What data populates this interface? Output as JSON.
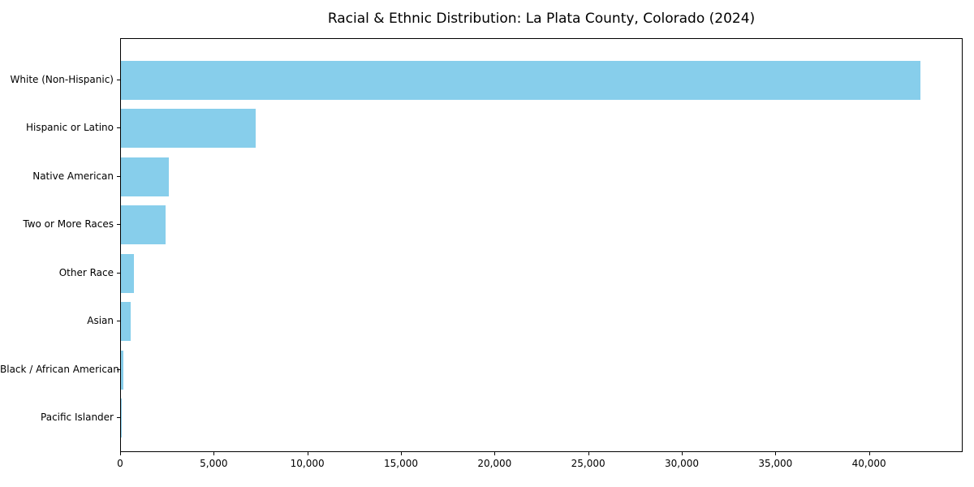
{
  "chart_data": {
    "type": "bar",
    "orientation": "horizontal",
    "title": "Racial & Ethnic Distribution: La Plata County, Colorado (2024)",
    "categories": [
      "White (Non-Hispanic)",
      "Hispanic or Latino",
      "Native American",
      "Two or More Races",
      "Other Race",
      "Asian",
      "Black / African American",
      "Pacific Islander"
    ],
    "values": [
      42800,
      7200,
      2550,
      2400,
      680,
      500,
      140,
      40
    ],
    "xlabel": "",
    "ylabel": "",
    "xlim": [
      0,
      45000
    ],
    "xticks": [
      0,
      5000,
      10000,
      15000,
      20000,
      25000,
      30000,
      35000,
      40000
    ],
    "bar_color": "#87CEEB",
    "axis_color": "#000000",
    "background_color": "#ffffff",
    "grid": false,
    "legend": false
  }
}
